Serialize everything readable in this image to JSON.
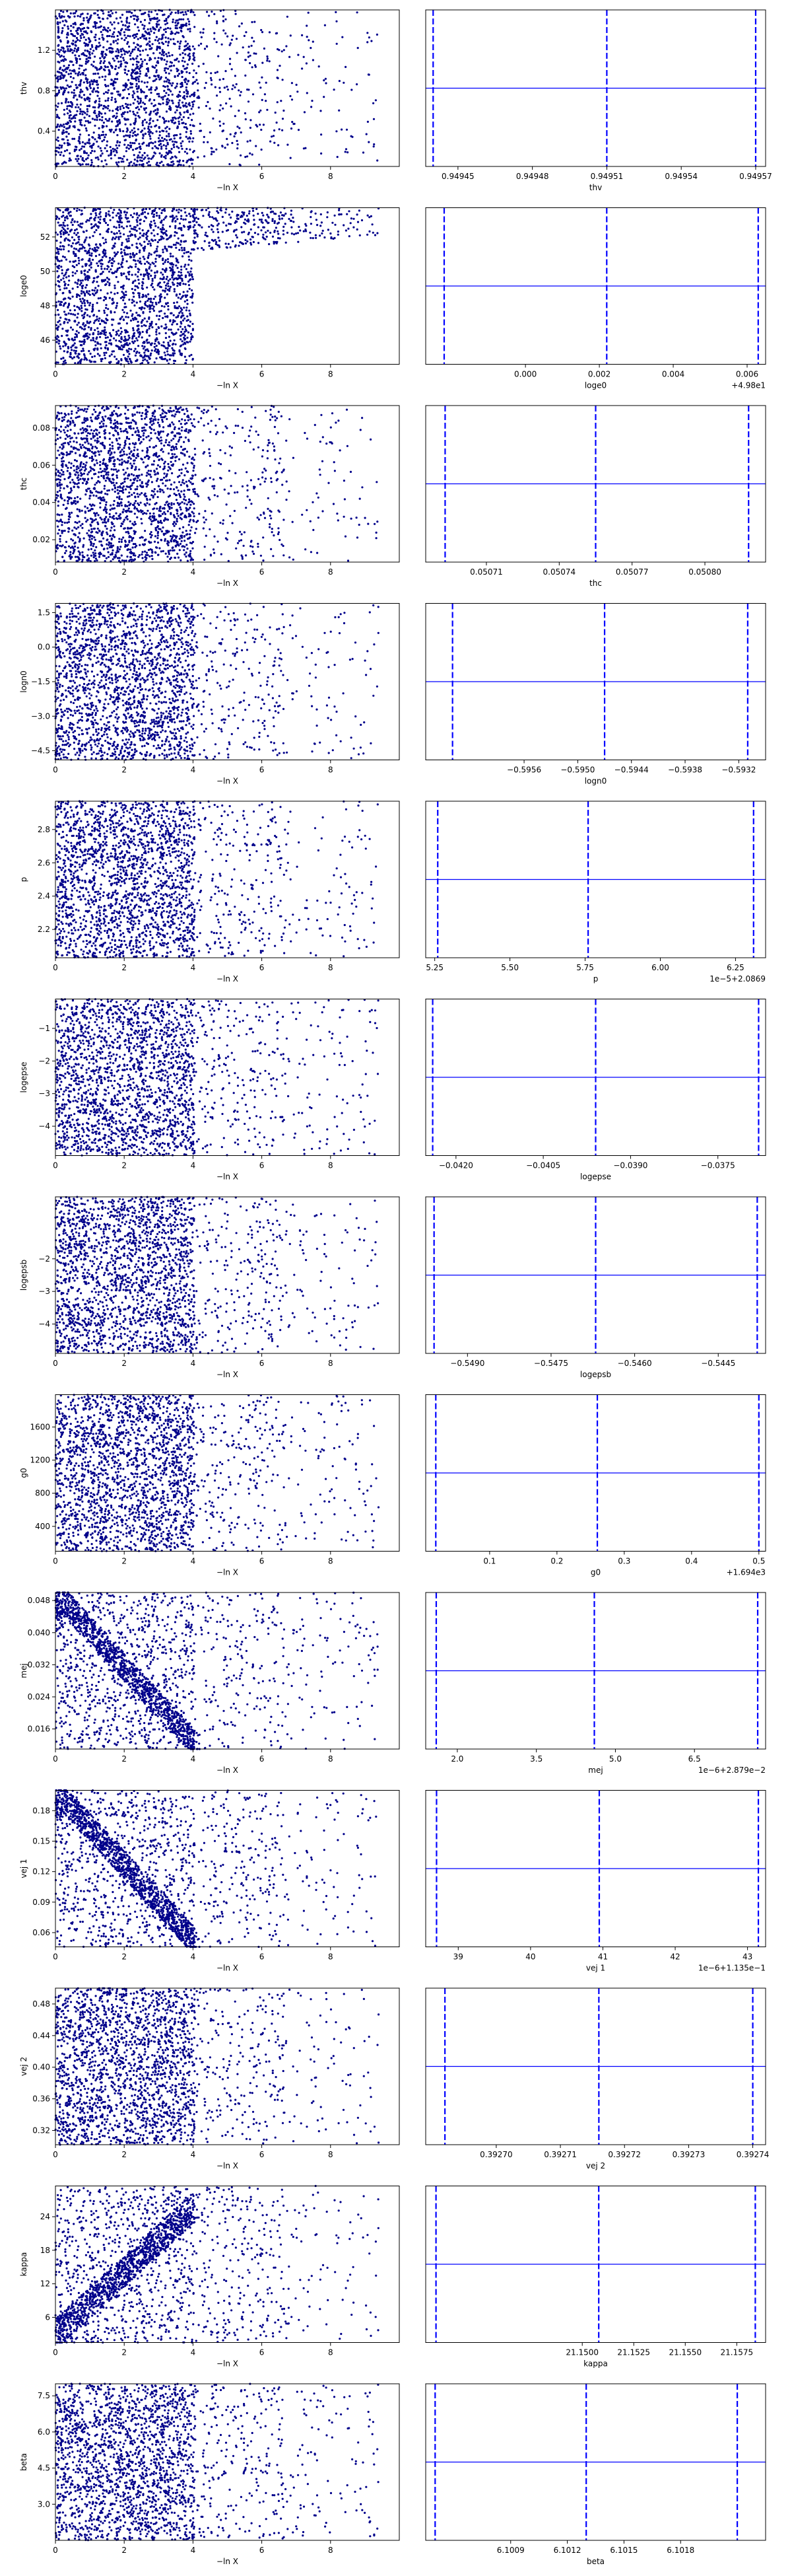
{
  "colors": {
    "points": "#00008b",
    "lines": "#0000ff",
    "axes": "#000000"
  },
  "scatter_xlabel": "−ln X",
  "scatter_xticks": [
    "0",
    "2",
    "4",
    "6",
    "8"
  ],
  "chart_data": [
    {
      "type": "scatter",
      "param": "thv",
      "ylabel": "thv",
      "xlabel": "−ln X",
      "xlim": [
        0,
        10
      ],
      "ylim": [
        0.05,
        1.6
      ],
      "yticks": [
        {
          "v": 1.2,
          "l": "1.2"
        },
        {
          "v": 0.8,
          "l": "0.8"
        },
        {
          "v": 0.4,
          "l": "0.4"
        }
      ],
      "pattern": "uniform",
      "right": {
        "xlabel": "thv",
        "offset": "",
        "xlim": [
          0.949437,
          0.949574
        ],
        "xticks": [
          {
            "v": 0.94945,
            "l": "0.94945"
          },
          {
            "v": 0.94948,
            "l": "0.94948"
          },
          {
            "v": 0.94951,
            "l": "0.94951"
          },
          {
            "v": 0.94954,
            "l": "0.94954"
          },
          {
            "v": 0.94957,
            "l": "0.94957"
          }
        ],
        "dashed": [
          0.94944,
          0.94951,
          0.94957
        ],
        "hline": 0.5
      }
    },
    {
      "type": "scatter",
      "param": "loge0",
      "ylabel": "loge0",
      "xlabel": "−ln X",
      "xlim": [
        0,
        10
      ],
      "ylim": [
        44.6,
        53.7
      ],
      "yticks": [
        {
          "v": 52,
          "l": "52"
        },
        {
          "v": 50,
          "l": "50"
        },
        {
          "v": 48,
          "l": "48"
        },
        {
          "v": 46,
          "l": "46"
        }
      ],
      "pattern": "upper-wedge",
      "right": {
        "xlabel": "loge0",
        "offset": "+4.98e1",
        "xlim": [
          -0.0027,
          0.0065
        ],
        "xticks": [
          {
            "v": 0.0,
            "l": "0.000"
          },
          {
            "v": 0.002,
            "l": "0.002"
          },
          {
            "v": 0.004,
            "l": "0.004"
          },
          {
            "v": 0.006,
            "l": "0.006"
          }
        ],
        "dashed": [
          -0.0022,
          0.0022,
          0.0063
        ],
        "hline": 0.5
      }
    },
    {
      "type": "scatter",
      "param": "thc",
      "ylabel": "thc",
      "xlabel": "−ln X",
      "xlim": [
        0,
        10
      ],
      "ylim": [
        0.008,
        0.092
      ],
      "yticks": [
        {
          "v": 0.08,
          "l": "0.08"
        },
        {
          "v": 0.06,
          "l": "0.06"
        },
        {
          "v": 0.04,
          "l": "0.04"
        },
        {
          "v": 0.02,
          "l": "0.02"
        }
      ],
      "pattern": "uniform",
      "right": {
        "xlabel": "thc",
        "offset": "",
        "xlim": [
          0.050685,
          0.050825
        ],
        "xticks": [
          {
            "v": 0.05071,
            "l": "0.05071"
          },
          {
            "v": 0.05074,
            "l": "0.05074"
          },
          {
            "v": 0.05077,
            "l": "0.05077"
          },
          {
            "v": 0.0508,
            "l": "0.05080"
          }
        ],
        "dashed": [
          0.050693,
          0.050755,
          0.050818
        ],
        "hline": 0.5
      }
    },
    {
      "type": "scatter",
      "param": "logn0",
      "ylabel": "logn0",
      "xlabel": "−ln X",
      "xlim": [
        0,
        10
      ],
      "ylim": [
        -4.9,
        1.9
      ],
      "yticks": [
        {
          "v": 1.5,
          "l": "1.5"
        },
        {
          "v": 0.0,
          "l": "0.0"
        },
        {
          "v": -1.5,
          "l": "−1.5"
        },
        {
          "v": -3.0,
          "l": "−3.0"
        },
        {
          "v": -4.5,
          "l": "−4.5"
        }
      ],
      "pattern": "uniform",
      "right": {
        "xlabel": "logn0",
        "offset": "",
        "xlim": [
          -0.5967,
          -0.5929
        ],
        "xticks": [
          {
            "v": -0.5956,
            "l": "−0.5956"
          },
          {
            "v": -0.595,
            "l": "−0.5950"
          },
          {
            "v": -0.5944,
            "l": "−0.5944"
          },
          {
            "v": -0.5938,
            "l": "−0.5938"
          },
          {
            "v": -0.5932,
            "l": "−0.5932"
          }
        ],
        "dashed": [
          -0.5964,
          -0.5947,
          -0.5931
        ],
        "hline": 0.5
      }
    },
    {
      "type": "scatter",
      "param": "p",
      "ylabel": "p",
      "xlabel": "−ln X",
      "xlim": [
        0,
        10
      ],
      "ylim": [
        2.03,
        2.97
      ],
      "yticks": [
        {
          "v": 2.8,
          "l": "2.8"
        },
        {
          "v": 2.6,
          "l": "2.6"
        },
        {
          "v": 2.4,
          "l": "2.4"
        },
        {
          "v": 2.2,
          "l": "2.2"
        }
      ],
      "pattern": "uniform",
      "right": {
        "xlabel": "p",
        "offset": "1e−5+2.0869",
        "xlim": [
          5.22,
          6.35
        ],
        "xticks": [
          {
            "v": 5.25,
            "l": "5.25"
          },
          {
            "v": 5.5,
            "l": "5.50"
          },
          {
            "v": 5.75,
            "l": "5.75"
          },
          {
            "v": 6.0,
            "l": "6.00"
          },
          {
            "v": 6.25,
            "l": "6.25"
          }
        ],
        "dashed": [
          5.26,
          5.76,
          6.31
        ],
        "hline": 0.5
      }
    },
    {
      "type": "scatter",
      "param": "logepse",
      "ylabel": "logepse",
      "xlabel": "−ln X",
      "xlim": [
        0,
        10
      ],
      "ylim": [
        -4.9,
        -0.1
      ],
      "yticks": [
        {
          "v": -1,
          "l": "−1"
        },
        {
          "v": -2,
          "l": "−2"
        },
        {
          "v": -3,
          "l": "−3"
        },
        {
          "v": -4,
          "l": "−4"
        }
      ],
      "pattern": "uniform",
      "right": {
        "xlabel": "logepse",
        "offset": "",
        "xlim": [
          -0.04252,
          -0.03668
        ],
        "xticks": [
          {
            "v": -0.042,
            "l": "−0.0420"
          },
          {
            "v": -0.0405,
            "l": "−0.0405"
          },
          {
            "v": -0.039,
            "l": "−0.0390"
          },
          {
            "v": -0.0375,
            "l": "−0.0375"
          }
        ],
        "dashed": [
          -0.0424,
          -0.0396,
          -0.0368
        ],
        "hline": 0.5
      }
    },
    {
      "type": "scatter",
      "param": "logepsb",
      "ylabel": "logepsb",
      "xlabel": "−ln X",
      "xlim": [
        0,
        10
      ],
      "ylim": [
        -4.9,
        -0.1
      ],
      "yticks": [
        {
          "v": -2,
          "l": "−2"
        },
        {
          "v": -3,
          "l": "−3"
        },
        {
          "v": -4,
          "l": "−4"
        }
      ],
      "pattern": "uniform",
      "right": {
        "xlabel": "logepsb",
        "offset": "",
        "xlim": [
          -0.54975,
          -0.54365
        ],
        "xticks": [
          {
            "v": -0.549,
            "l": "−0.5490"
          },
          {
            "v": -0.5475,
            "l": "−0.5475"
          },
          {
            "v": -0.546,
            "l": "−0.5460"
          },
          {
            "v": -0.5445,
            "l": "−0.5445"
          }
        ],
        "dashed": [
          -0.5496,
          -0.5467,
          -0.5438
        ],
        "hline": 0.5
      }
    },
    {
      "type": "scatter",
      "param": "g0",
      "ylabel": "g0",
      "xlabel": "−ln X",
      "xlim": [
        0,
        10
      ],
      "ylim": [
        100,
        1990
      ],
      "yticks": [
        {
          "v": 1600,
          "l": "1600"
        },
        {
          "v": 1200,
          "l": "1200"
        },
        {
          "v": 800,
          "l": "800"
        },
        {
          "v": 400,
          "l": "400"
        }
      ],
      "pattern": "uniform",
      "right": {
        "xlabel": "g0",
        "offset": "+1.694e3",
        "xlim": [
          0.005,
          0.51
        ],
        "xticks": [
          {
            "v": 0.1,
            "l": "0.1"
          },
          {
            "v": 0.2,
            "l": "0.2"
          },
          {
            "v": 0.3,
            "l": "0.3"
          },
          {
            "v": 0.4,
            "l": "0.4"
          },
          {
            "v": 0.5,
            "l": "0.5"
          }
        ],
        "dashed": [
          0.02,
          0.26,
          0.5
        ],
        "hline": 0.5
      }
    },
    {
      "type": "scatter",
      "param": "mej",
      "ylabel": "mej",
      "xlabel": "−ln X",
      "xlim": [
        0,
        10
      ],
      "ylim": [
        0.011,
        0.05
      ],
      "yticks": [
        {
          "v": 0.048,
          "l": "0.048"
        },
        {
          "v": 0.04,
          "l": "0.040"
        },
        {
          "v": 0.032,
          "l": "0.032"
        },
        {
          "v": 0.024,
          "l": "0.024"
        },
        {
          "v": 0.016,
          "l": "0.016"
        }
      ],
      "pattern": "diagonal-down",
      "right": {
        "xlabel": "mej",
        "offset": "1e−6+2.879e−2",
        "xlim": [
          1.4,
          7.85
        ],
        "xticks": [
          {
            "v": 2.0,
            "l": "2.0"
          },
          {
            "v": 3.5,
            "l": "3.5"
          },
          {
            "v": 5.0,
            "l": "5.0"
          },
          {
            "v": 6.5,
            "l": "6.5"
          }
        ],
        "dashed": [
          1.6,
          4.6,
          7.7
        ],
        "hline": 0.5
      }
    },
    {
      "type": "scatter",
      "param": "vej 1",
      "ylabel": "vej 1",
      "xlabel": "−ln X",
      "xlim": [
        0,
        10
      ],
      "ylim": [
        0.046,
        0.2
      ],
      "yticks": [
        {
          "v": 0.18,
          "l": "0.18"
        },
        {
          "v": 0.15,
          "l": "0.15"
        },
        {
          "v": 0.12,
          "l": "0.12"
        },
        {
          "v": 0.09,
          "l": "0.09"
        },
        {
          "v": 0.06,
          "l": "0.06"
        }
      ],
      "pattern": "diagonal-down",
      "right": {
        "xlabel": "vej 1",
        "offset": "1e−6+1.135e−1",
        "xlim": [
          38.55,
          43.25
        ],
        "xticks": [
          {
            "v": 39,
            "l": "39"
          },
          {
            "v": 40,
            "l": "40"
          },
          {
            "v": 41,
            "l": "41"
          },
          {
            "v": 42,
            "l": "42"
          },
          {
            "v": 43,
            "l": "43"
          }
        ],
        "dashed": [
          38.7,
          40.95,
          43.15
        ],
        "hline": 0.5
      }
    },
    {
      "type": "scatter",
      "param": "vej 2",
      "ylabel": "vej 2",
      "xlabel": "−ln X",
      "xlim": [
        0,
        10
      ],
      "ylim": [
        0.302,
        0.5
      ],
      "yticks": [
        {
          "v": 0.48,
          "l": "0.48"
        },
        {
          "v": 0.44,
          "l": "0.44"
        },
        {
          "v": 0.4,
          "l": "0.40"
        },
        {
          "v": 0.36,
          "l": "0.36"
        },
        {
          "v": 0.32,
          "l": "0.32"
        }
      ],
      "pattern": "uniform",
      "right": {
        "xlabel": "vej 2",
        "offset": "",
        "xlim": [
          0.392689,
          0.392742
        ],
        "xticks": [
          {
            "v": 0.3927,
            "l": "0.39270"
          },
          {
            "v": 0.39271,
            "l": "0.39271"
          },
          {
            "v": 0.39272,
            "l": "0.39272"
          },
          {
            "v": 0.39273,
            "l": "0.39273"
          },
          {
            "v": 0.39274,
            "l": "0.39274"
          }
        ],
        "dashed": [
          0.392692,
          0.392716,
          0.39274
        ],
        "hline": 0.5
      }
    },
    {
      "type": "scatter",
      "param": "kappa",
      "ylabel": "kappa",
      "xlabel": "−ln X",
      "xlim": [
        0,
        10
      ],
      "ylim": [
        1.5,
        29.5
      ],
      "yticks": [
        {
          "v": 24,
          "l": "24"
        },
        {
          "v": 18,
          "l": "18"
        },
        {
          "v": 12,
          "l": "12"
        },
        {
          "v": 6,
          "l": "6"
        }
      ],
      "pattern": "diagonal-up",
      "right": {
        "xlabel": "kappa",
        "offset": "",
        "xlim": [
          21.1424,
          21.1589
        ],
        "xticks": [
          {
            "v": 21.15,
            "l": "21.1500"
          },
          {
            "v": 21.1525,
            "l": "21.1525"
          },
          {
            "v": 21.155,
            "l": "21.1550"
          },
          {
            "v": 21.1575,
            "l": "21.1575"
          }
        ],
        "dashed": [
          21.1429,
          21.1508,
          21.1584
        ],
        "hline": 0.5
      }
    },
    {
      "type": "scatter",
      "param": "beta",
      "ylabel": "beta",
      "xlabel": "−ln X",
      "xlim": [
        0,
        10
      ],
      "ylim": [
        1.5,
        8.0
      ],
      "yticks": [
        {
          "v": 7.5,
          "l": "7.5"
        },
        {
          "v": 6.0,
          "l": "6.0"
        },
        {
          "v": 4.5,
          "l": "4.5"
        },
        {
          "v": 3.0,
          "l": "3.0"
        }
      ],
      "pattern": "uniform",
      "right": {
        "xlabel": "beta",
        "offset": "",
        "xlim": [
          6.10045,
          6.10225
        ],
        "xticks": [
          {
            "v": 6.1009,
            "l": "6.1009"
          },
          {
            "v": 6.1012,
            "l": "6.1012"
          },
          {
            "v": 6.1015,
            "l": "6.1015"
          },
          {
            "v": 6.1018,
            "l": "6.1018"
          }
        ],
        "dashed": [
          6.1005,
          6.1013,
          6.1021
        ],
        "hline": 0.5
      }
    }
  ]
}
